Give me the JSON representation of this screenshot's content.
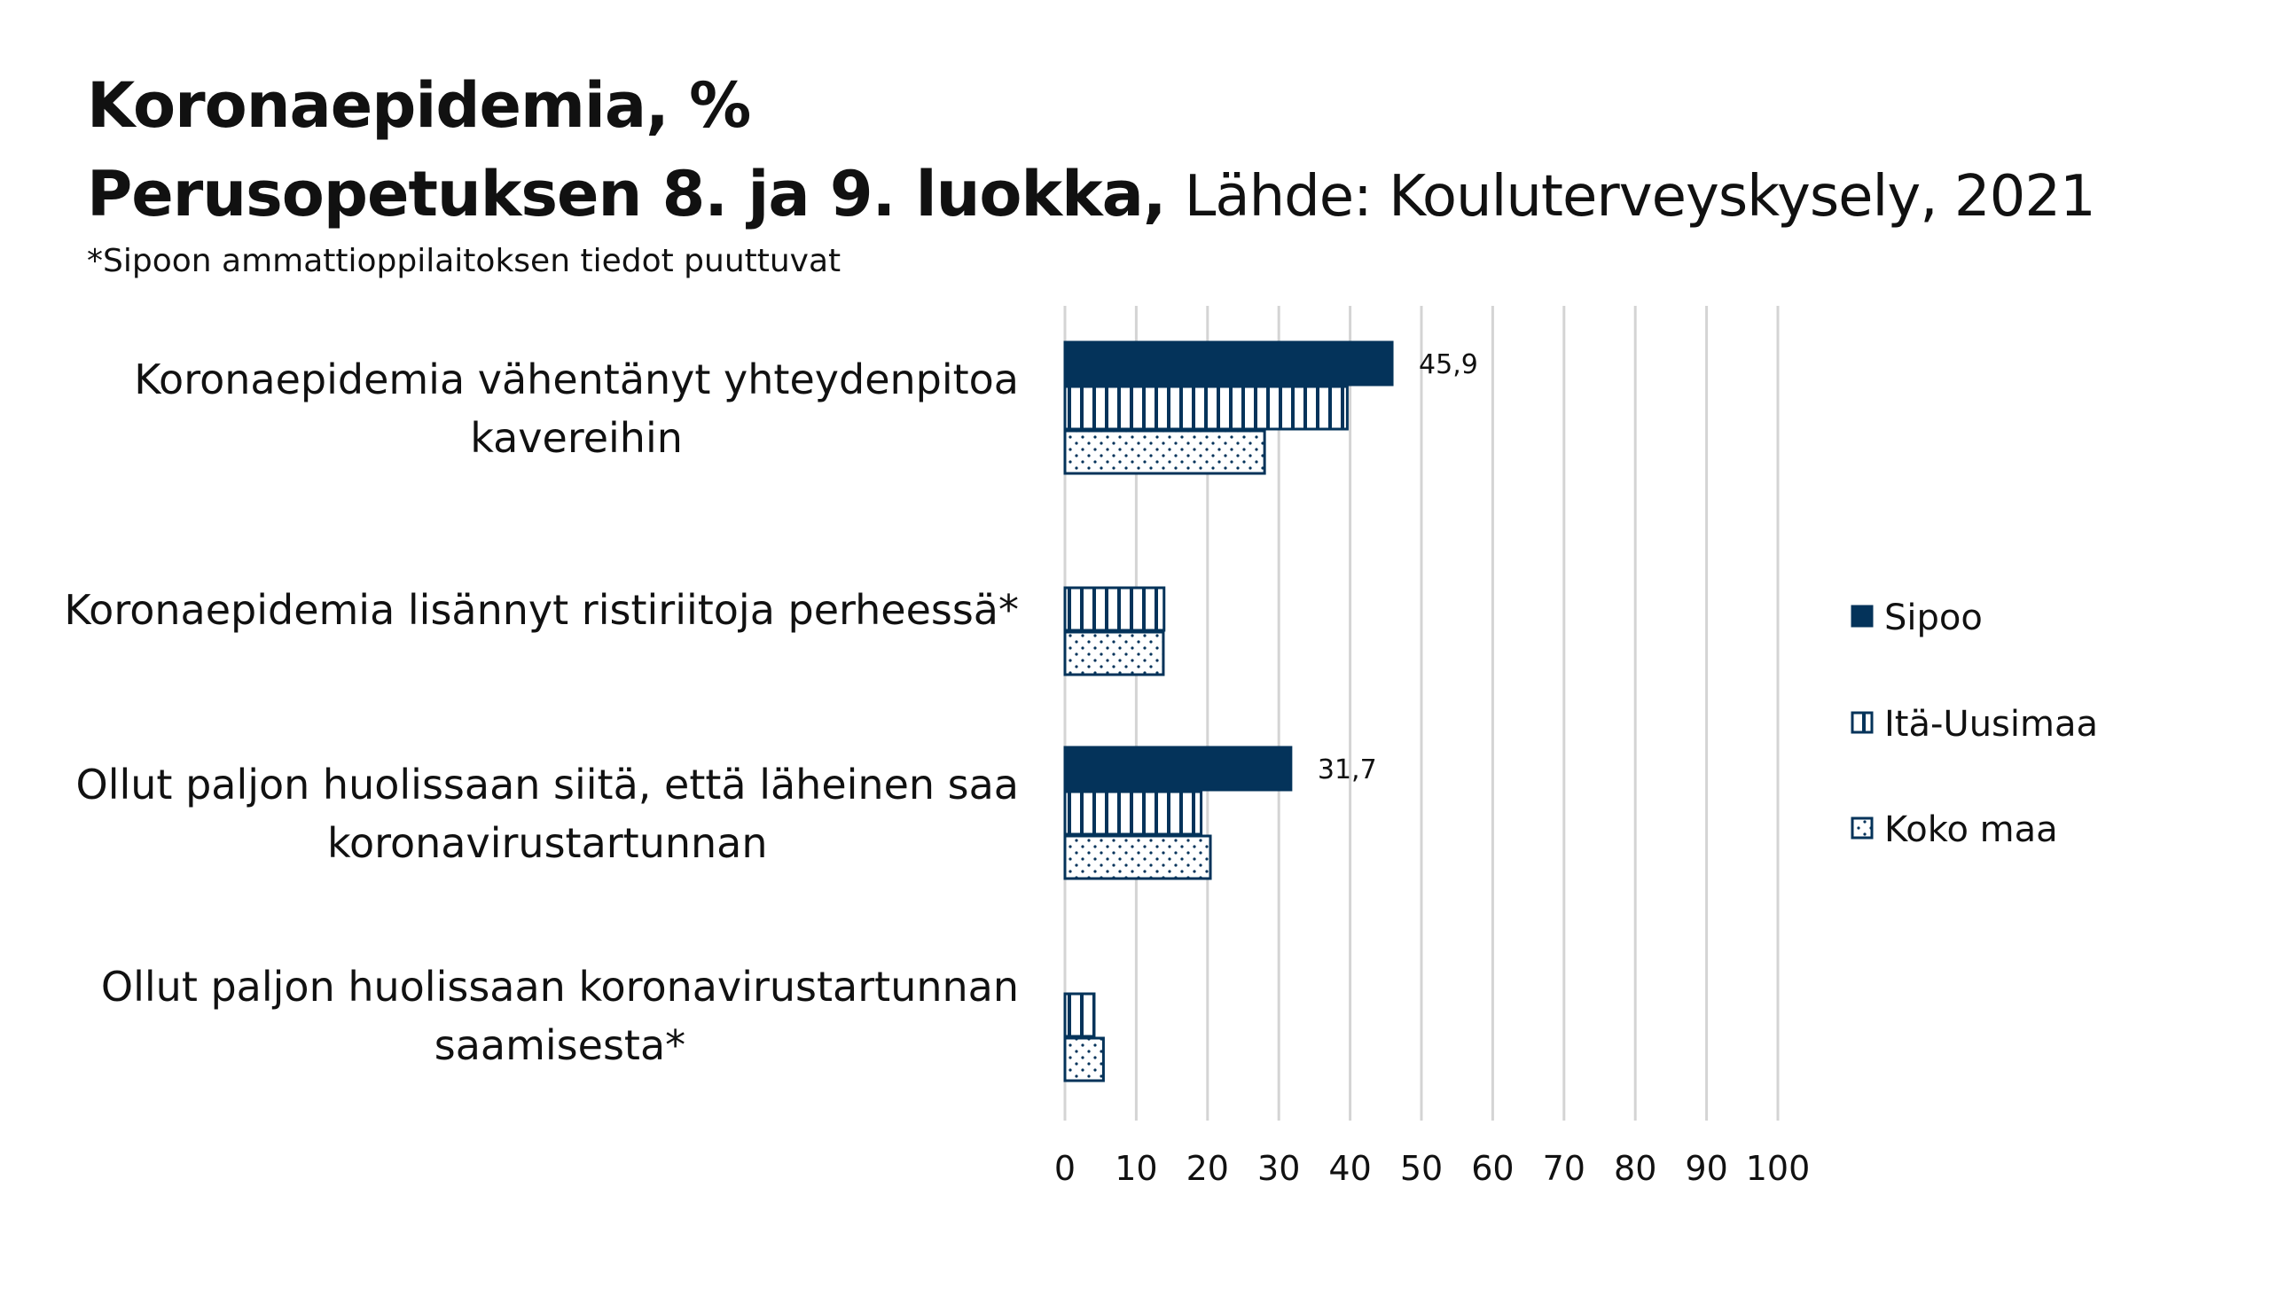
{
  "title": "Koronaepidemia, %",
  "subtitle_bold": "Perusopetuksen 8. ja 9. luokka,",
  "subtitle_source": "Lähde: Kouluterveyskysely, 2021",
  "footnote": "*Sipoon ammattioppilaitoksen tiedot puuttuvat",
  "colors": {
    "sipoo": "#04335a",
    "ita": "#04335a",
    "koko": "#04335a"
  },
  "chart_data": {
    "type": "bar",
    "orientation": "horizontal",
    "title": "Koronaepidemia, %",
    "categories": [
      [
        "Koronaepidemia vähentänyt yhteydenpitoa",
        "kavereihin"
      ],
      [
        "Koronaepidemia lisännyt ristiriitoja perheessä*"
      ],
      [
        "Ollut paljon huolissaan siitä, että läheinen saa",
        "koronavirustartunnan"
      ],
      [
        "Ollut paljon huolissaan koronavirustartunnan",
        "saamisesta*"
      ]
    ],
    "series": [
      {
        "name": "Sipoo",
        "pattern": "solid",
        "values": [
          45.9,
          null,
          31.7,
          null
        ],
        "labels": [
          "45,9",
          null,
          "31,7",
          null
        ]
      },
      {
        "name": "Itä-Uusimaa",
        "pattern": "vertical-lines",
        "values": [
          39.6,
          13.9,
          19.1,
          4.1
        ]
      },
      {
        "name": "Koko maa",
        "pattern": "dots",
        "values": [
          28.0,
          13.8,
          20.4,
          5.4
        ]
      }
    ],
    "xlim": [
      0,
      100
    ],
    "xticks": [
      "0",
      "10",
      "20",
      "30",
      "40",
      "50",
      "60",
      "70",
      "80",
      "90",
      "100"
    ],
    "grid": true,
    "legend": "right"
  }
}
